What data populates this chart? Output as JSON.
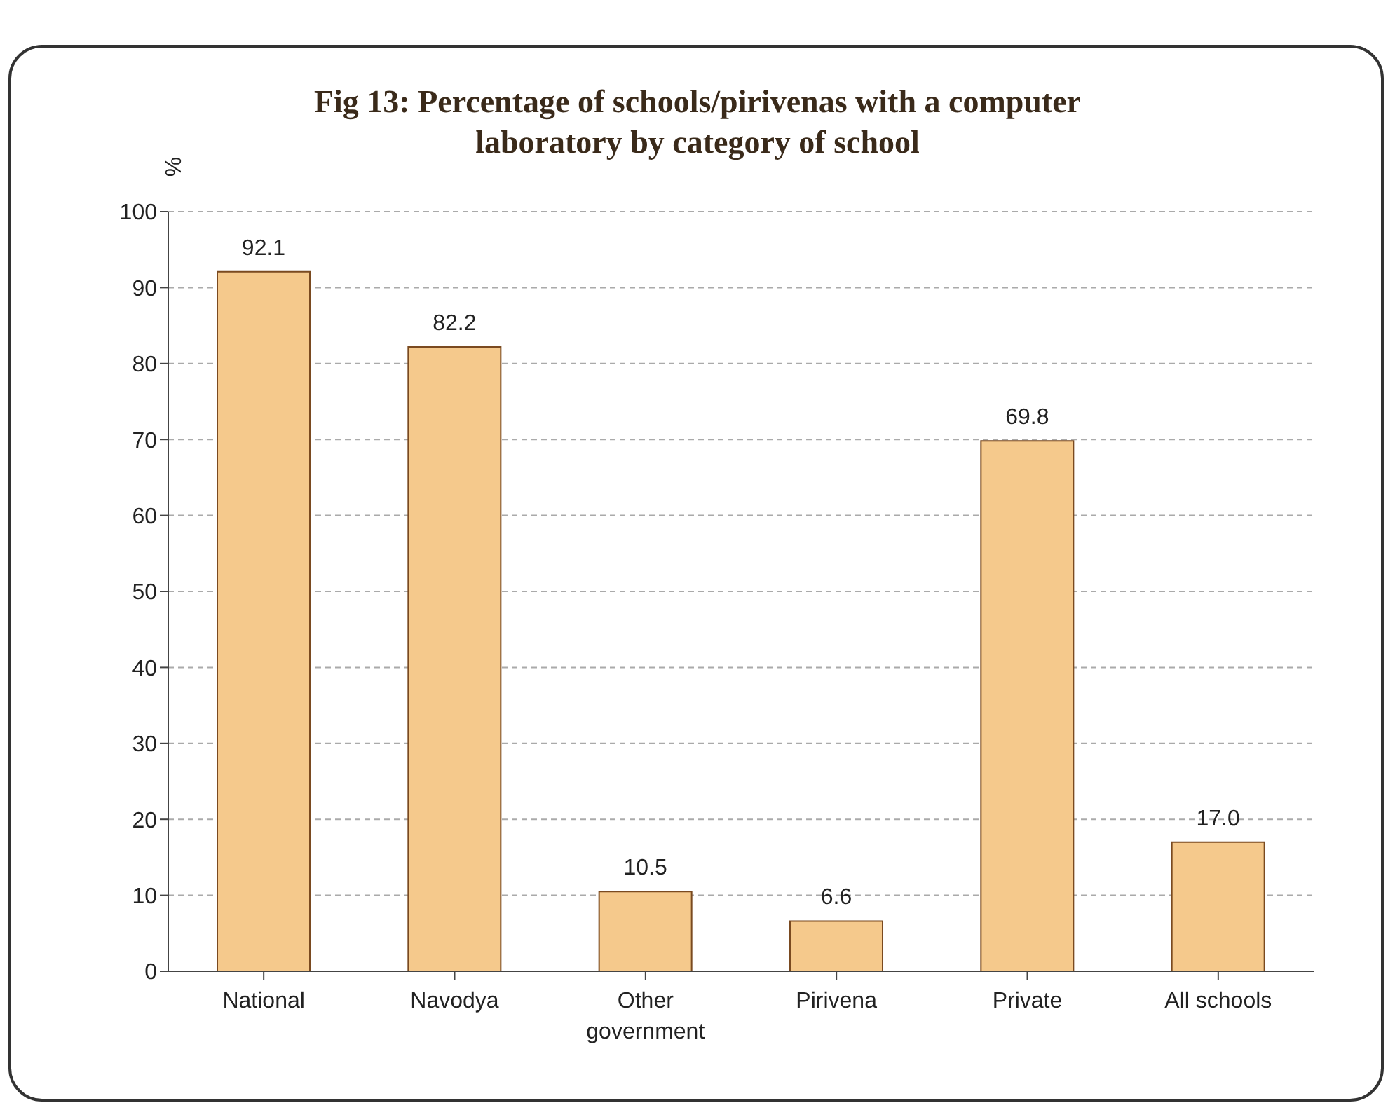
{
  "chart_data": {
    "type": "bar",
    "title": "Fig 13: Percentage of schools/pirivenas with a computer laboratory by category of school",
    "ylabel": "%",
    "categories": [
      "National",
      "Navodya",
      "Other government",
      "Pirivena",
      "Private",
      "All schools"
    ],
    "values": [
      92.1,
      82.2,
      10.5,
      6.6,
      69.8,
      17.0
    ],
    "value_labels": [
      "92.1",
      "82.2",
      "10.5",
      "6.6",
      "69.8",
      "17.0"
    ],
    "color": "#f5c98c",
    "ylim": [
      0,
      100
    ],
    "yticks": [
      0,
      10,
      20,
      30,
      40,
      50,
      60,
      70,
      80,
      90,
      100
    ],
    "grid": "y"
  }
}
